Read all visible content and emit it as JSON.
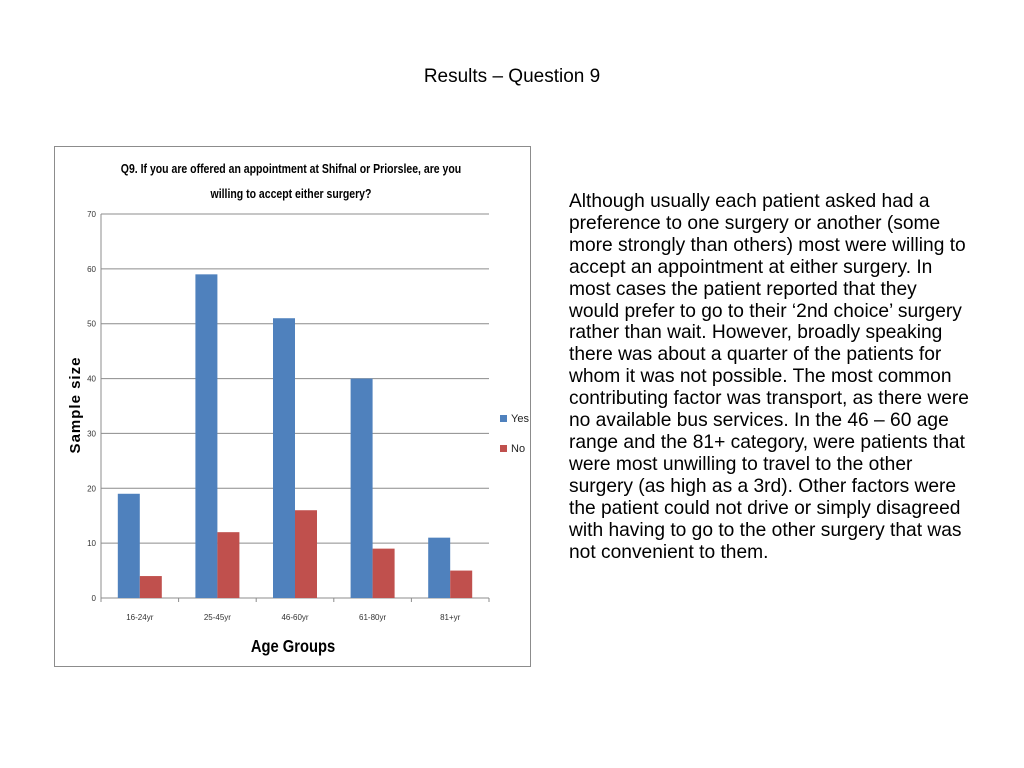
{
  "slide": {
    "title": "Results – Question 9",
    "paragraph": "Although usually each patient asked had a preference to one surgery or another (some more strongly than others) most were willing to accept an appointment at either surgery. In most cases the patient reported that they would prefer to go to their ‘2nd choice’ surgery rather than wait. However, broadly speaking there was about a quarter of the patients for whom it was not possible. The most common contributing factor was transport, as there were no available bus services. In the 46 – 60 age range and the 81+ category, were patients that were most unwilling to travel to the other surgery (as high as a 3rd). Other factors were the patient could not drive or simply disagreed with having to go to the other surgery that was not convenient to them."
  },
  "chart_data": {
    "type": "bar",
    "title_lines": [
      "Q9. If you are offered an appointment at Shifnal or Priorslee, are you",
      "willing to accept either surgery?"
    ],
    "xlabel": "Age Groups",
    "ylabel": "Sample size",
    "categories": [
      "16-24yr",
      "25-45yr",
      "46-60yr",
      "61-80yr",
      "81+yr"
    ],
    "series": [
      {
        "name": "Yes",
        "values": [
          19,
          59,
          51,
          40,
          11
        ],
        "color": "#4f81bd"
      },
      {
        "name": "No",
        "values": [
          4,
          12,
          16,
          9,
          5
        ],
        "color": "#c0504d"
      }
    ],
    "ylim": [
      0,
      70
    ],
    "yticks": [
      0,
      10,
      20,
      30,
      40,
      50,
      60,
      70
    ],
    "grid": true,
    "legend": "right",
    "gridline_color": "#8c8c8c"
  }
}
